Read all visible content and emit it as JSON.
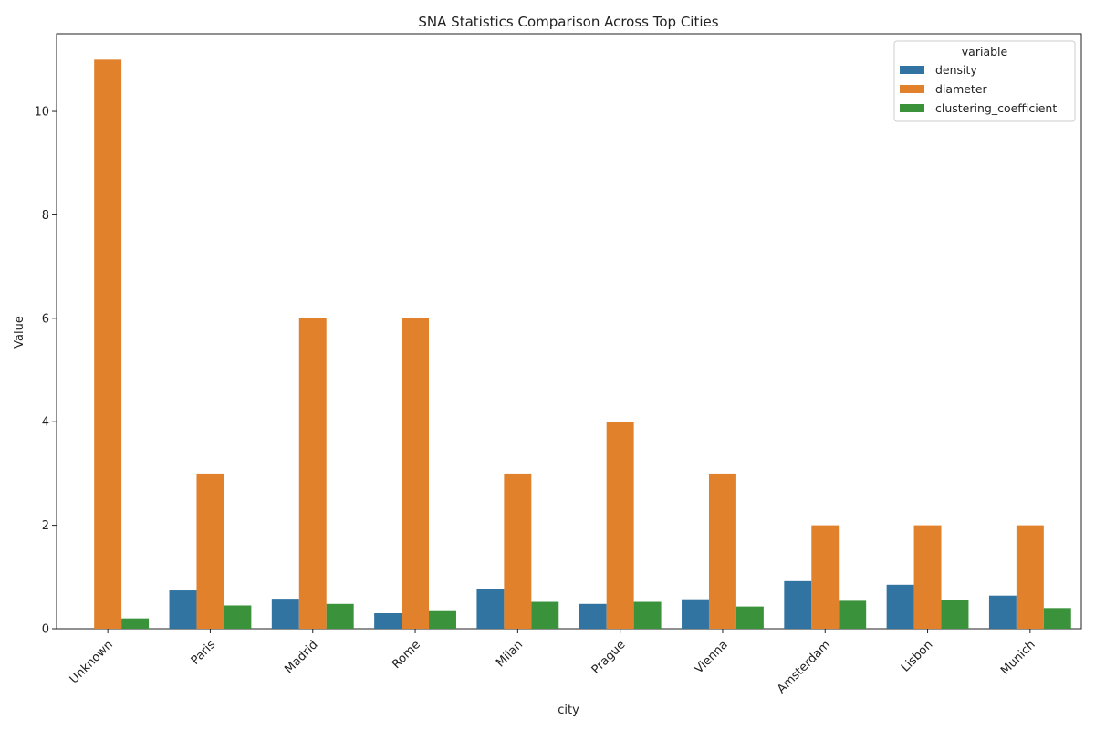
{
  "chart_data": {
    "type": "bar",
    "title": "SNA Statistics Comparison Across Top Cities",
    "xlabel": "city",
    "ylabel": "Value",
    "ylim": [
      0,
      11.5
    ],
    "yticks": [
      0,
      2,
      4,
      6,
      8,
      10
    ],
    "grid": false,
    "legend": {
      "title": "variable",
      "placement": "top-right"
    },
    "categories": [
      "Unknown",
      "Paris",
      "Madrid",
      "Rome",
      "Milan",
      "Prague",
      "Vienna",
      "Amsterdam",
      "Lisbon",
      "Munich"
    ],
    "series": [
      {
        "name": "density",
        "color": "#3274a1",
        "values": [
          0.0,
          0.74,
          0.58,
          0.3,
          0.76,
          0.48,
          0.57,
          0.92,
          0.85,
          0.64
        ]
      },
      {
        "name": "diameter",
        "color": "#e1812c",
        "values": [
          11,
          3,
          6,
          6,
          3,
          4,
          3,
          2,
          2,
          2
        ]
      },
      {
        "name": "clustering_coefficient",
        "color": "#3a923a",
        "values": [
          0.2,
          0.45,
          0.48,
          0.34,
          0.52,
          0.52,
          0.43,
          0.54,
          0.55,
          0.4
        ]
      }
    ]
  }
}
